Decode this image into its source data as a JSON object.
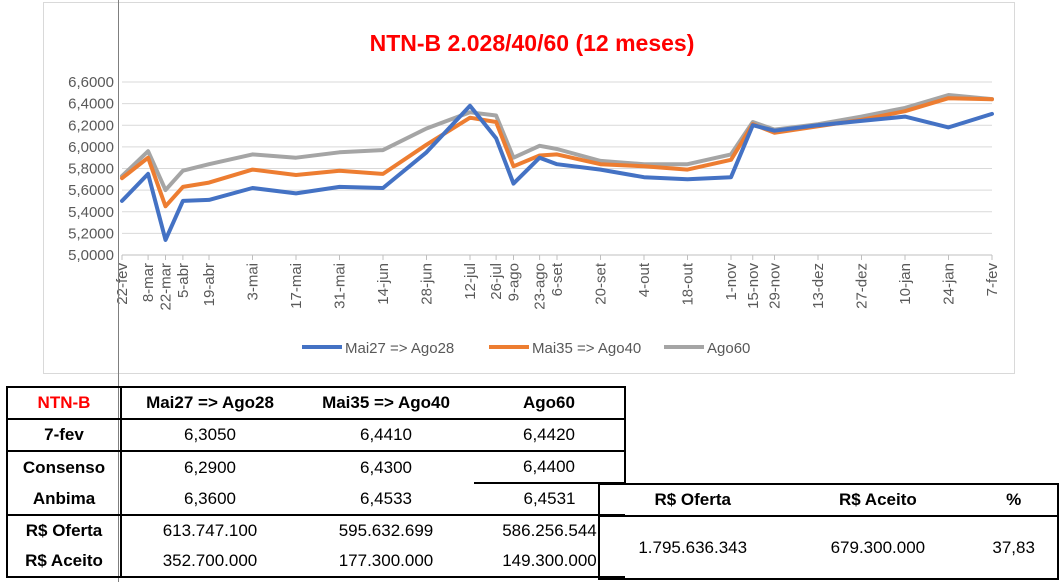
{
  "chart_data": {
    "type": "line",
    "title": "NTN-B 2.028/40/60 (12 meses)",
    "categories": [
      "22-fev",
      "8-mar",
      "22-mar",
      "5-abr",
      "19-abr",
      "3-mai",
      "17-mai",
      "31-mai",
      "14-jun",
      "28-jun",
      "12-jul",
      "26-jul",
      "9-ago",
      "23-ago",
      "6-set",
      "20-set",
      "4-out",
      "18-out",
      "1-nov",
      "15-nov",
      "29-nov",
      "13-dez",
      "27-dez",
      "10-jan",
      "24-jan",
      "7-fev"
    ],
    "x_positions": [
      0,
      0.6,
      1,
      1.4,
      2,
      3,
      4,
      5,
      6,
      7,
      8,
      8.6,
      9,
      9.6,
      10,
      11,
      12,
      13,
      14,
      14.5,
      15,
      16,
      17,
      18,
      19,
      20
    ],
    "ylim": [
      5.0,
      6.6
    ],
    "yticks": [
      "5,0000",
      "5,2000",
      "5,4000",
      "5,6000",
      "5,8000",
      "6,0000",
      "6,2000",
      "6,4000",
      "6,6000"
    ],
    "legend_position": "bottom",
    "series": [
      {
        "name": "Mai27 => Ago28",
        "color": "#4472c4",
        "values": [
          5.5,
          5.75,
          5.14,
          5.5,
          5.51,
          5.62,
          5.57,
          5.63,
          5.62,
          5.95,
          6.38,
          6.08,
          5.66,
          5.9,
          5.84,
          5.79,
          5.72,
          5.7,
          5.72,
          6.2,
          6.15,
          6.2,
          6.24,
          6.28,
          6.18,
          6.305
        ]
      },
      {
        "name": "Mai35 => Ago40",
        "color": "#ed7d31",
        "values": [
          5.71,
          5.9,
          5.45,
          5.63,
          5.67,
          5.79,
          5.74,
          5.78,
          5.75,
          6.02,
          6.27,
          6.23,
          5.82,
          5.92,
          5.93,
          5.84,
          5.82,
          5.79,
          5.88,
          6.21,
          6.13,
          6.19,
          6.25,
          6.33,
          6.45,
          6.441
        ]
      },
      {
        "name": "Ago60",
        "color": "#a5a5a5",
        "values": [
          5.73,
          5.96,
          5.6,
          5.78,
          5.84,
          5.93,
          5.9,
          5.95,
          5.97,
          6.17,
          6.32,
          6.29,
          5.9,
          6.01,
          5.98,
          5.87,
          5.84,
          5.84,
          5.93,
          6.23,
          6.16,
          6.21,
          6.28,
          6.36,
          6.48,
          6.442
        ]
      }
    ]
  },
  "table": {
    "header": [
      "NTN-B",
      "Mai27 => Ago28",
      "Mai35 => Ago40",
      "Ago60"
    ],
    "rows": [
      {
        "label": "7-fev",
        "values": [
          "6,3050",
          "6,4410",
          "6,4420"
        ]
      },
      {
        "label": "Consenso",
        "values": [
          "6,2900",
          "6,4300",
          "6,4400"
        ]
      },
      {
        "label": "Anbima",
        "values": [
          "6,3600",
          "6,4533",
          "6,4531"
        ]
      },
      {
        "label": "R$ Oferta",
        "values": [
          "613.747.100",
          "595.632.699",
          "586.256.544"
        ]
      },
      {
        "label": "R$ Aceito",
        "values": [
          "352.700.000",
          "177.300.000",
          "149.300.000"
        ]
      }
    ]
  },
  "summary": {
    "header": [
      "R$ Oferta",
      "R$ Aceito",
      "%"
    ],
    "values": [
      "1.795.636.343",
      "679.300.000",
      "37,83"
    ]
  }
}
